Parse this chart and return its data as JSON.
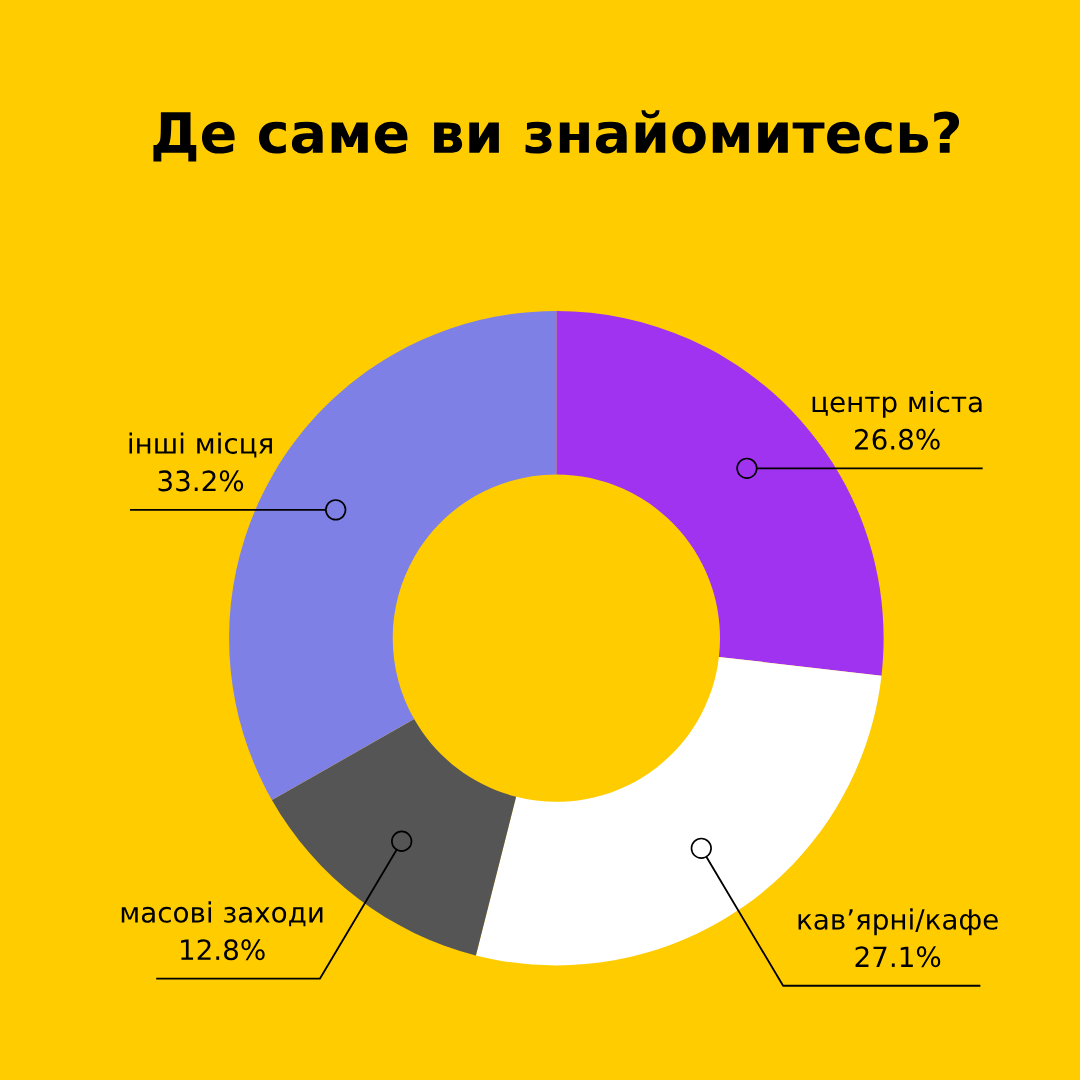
{
  "chart_data": {
    "type": "donut",
    "title": "Де саме ви знайомитесь?",
    "categories": [
      "центр міста",
      "кав’ярні/кафе",
      "масові заходи",
      "інші місця"
    ],
    "values": [
      26.8,
      27.1,
      12.8,
      33.2
    ],
    "colors": [
      "#a033f0",
      "#ffffff",
      "#555555",
      "#7f80e6"
    ],
    "value_labels": [
      "26.8%",
      "27.1%",
      "12.8%",
      "33.2%"
    ],
    "legend": false
  }
}
